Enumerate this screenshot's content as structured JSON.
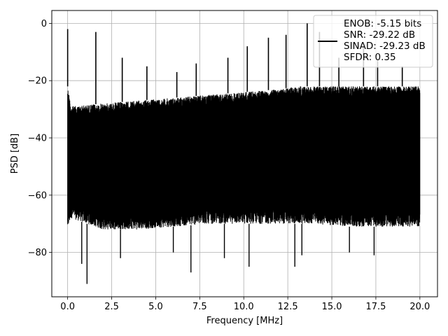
{
  "chart_data": {
    "type": "line",
    "xlabel": "Frequency [MHz]",
    "ylabel": "PSD [dB]",
    "xlim": [
      -0.9,
      21.0
    ],
    "ylim": [
      -95.5,
      4.5
    ],
    "x_ticks": [
      0.0,
      2.5,
      5.0,
      7.5,
      10.0,
      12.5,
      15.0,
      17.5,
      20.0
    ],
    "x_tick_labels": [
      "0.0",
      "2.5",
      "5.0",
      "7.5",
      "10.0",
      "12.5",
      "15.0",
      "17.5",
      "20.0"
    ],
    "y_ticks": [
      0,
      -20,
      -40,
      -60,
      -80
    ],
    "y_tick_labels": [
      "0",
      "−20",
      "−40",
      "−60",
      "−80"
    ],
    "grid": true,
    "legend_position": "upper right",
    "series": [
      {
        "legend": [
          "ENOB: -5.15 bits",
          "SNR: -29.22 dB",
          "SINAD: -29.23 dB",
          "SFDR: 0.35"
        ],
        "color": "#000000",
        "noise_floor": {
          "x": [
            0.0,
            0.2,
            2.0,
            4.0,
            6.0,
            8.0,
            10.0,
            12.0,
            13.0,
            14.0,
            16.0,
            18.0,
            20.0
          ],
          "upper_db": [
            -22,
            -29,
            -28,
            -27,
            -26,
            -25,
            -24,
            -23,
            -22,
            -22,
            -22,
            -22,
            -22
          ],
          "lower_db": [
            -72,
            -68,
            -72,
            -72,
            -71,
            -70,
            -70,
            -70,
            -70,
            -70,
            -71,
            -71,
            -71
          ]
        },
        "peaks": [
          {
            "x": 0.0,
            "y": -2
          },
          {
            "x": 1.6,
            "y": -3
          },
          {
            "x": 3.1,
            "y": -12
          },
          {
            "x": 4.5,
            "y": -15
          },
          {
            "x": 6.2,
            "y": -17
          },
          {
            "x": 7.3,
            "y": -14
          },
          {
            "x": 9.1,
            "y": -12
          },
          {
            "x": 10.2,
            "y": -8
          },
          {
            "x": 11.4,
            "y": -5
          },
          {
            "x": 12.4,
            "y": -4
          },
          {
            "x": 13.6,
            "y": 0
          },
          {
            "x": 14.3,
            "y": -3
          },
          {
            "x": 15.4,
            "y": -12
          },
          {
            "x": 16.8,
            "y": -8
          },
          {
            "x": 17.6,
            "y": -13
          },
          {
            "x": 19.0,
            "y": -15
          }
        ],
        "dips": [
          {
            "x": 0.8,
            "y": -84
          },
          {
            "x": 1.1,
            "y": -91
          },
          {
            "x": 3.0,
            "y": -82
          },
          {
            "x": 6.0,
            "y": -80
          },
          {
            "x": 7.0,
            "y": -87
          },
          {
            "x": 8.9,
            "y": -82
          },
          {
            "x": 10.3,
            "y": -85
          },
          {
            "x": 12.9,
            "y": -85
          },
          {
            "x": 13.3,
            "y": -81
          },
          {
            "x": 16.0,
            "y": -80
          },
          {
            "x": 17.4,
            "y": -81
          }
        ]
      }
    ]
  }
}
